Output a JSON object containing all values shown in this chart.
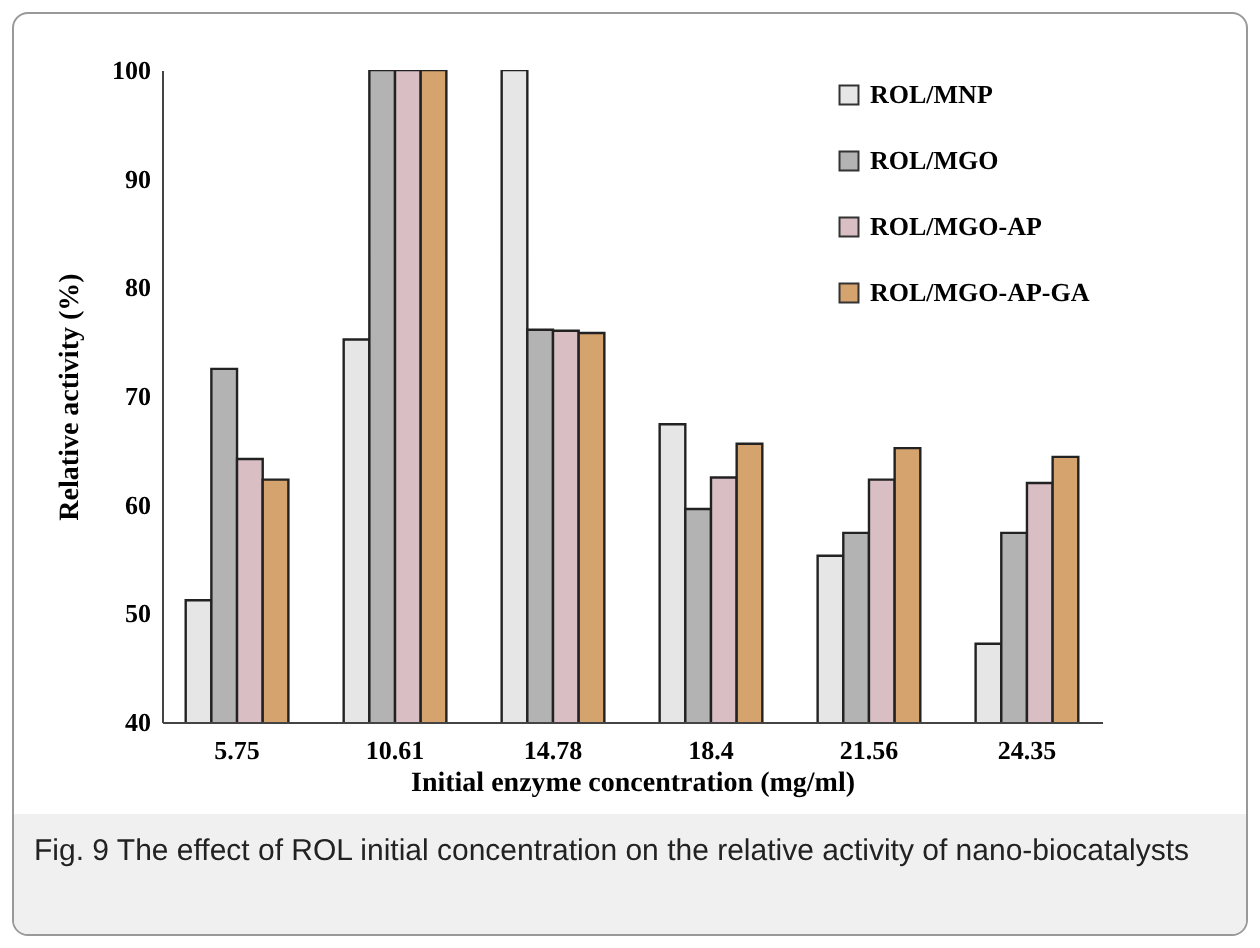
{
  "chart_data": {
    "type": "bar",
    "xlabel": "Initial enzyme concentration (mg/ml)",
    "ylabel": "Relative activity (%)",
    "categories": [
      "5.75",
      "10.61",
      "14.78",
      "18.4",
      "21.56",
      "24.35"
    ],
    "series": [
      {
        "name": "ROL/MNP",
        "color": "#e6e6e6",
        "values": [
          51.2,
          75.2,
          100,
          67.4,
          55.3,
          47.2
        ]
      },
      {
        "name": "ROL/MGO",
        "color": "#b3b3b3",
        "values": [
          72.5,
          100,
          76.1,
          59.6,
          57.4,
          57.4
        ]
      },
      {
        "name": "ROL/MGO-AP",
        "color": "#d9bfc4",
        "values": [
          64.2,
          100,
          76.0,
          62.5,
          62.3,
          62.0
        ]
      },
      {
        "name": "ROL/MGO-AP-GA",
        "color": "#d4a36e",
        "values": [
          62.3,
          100,
          75.8,
          65.6,
          65.2,
          64.4
        ]
      }
    ],
    "ylim": [
      40,
      100
    ],
    "yticks": [
      40,
      50,
      60,
      70,
      80,
      90,
      100
    ],
    "grid": false,
    "legend": "top right",
    "annotations": [
      "Fig. 9 The effect of ROL initial concentration on the relative activity of nano-biocatalysts"
    ]
  }
}
